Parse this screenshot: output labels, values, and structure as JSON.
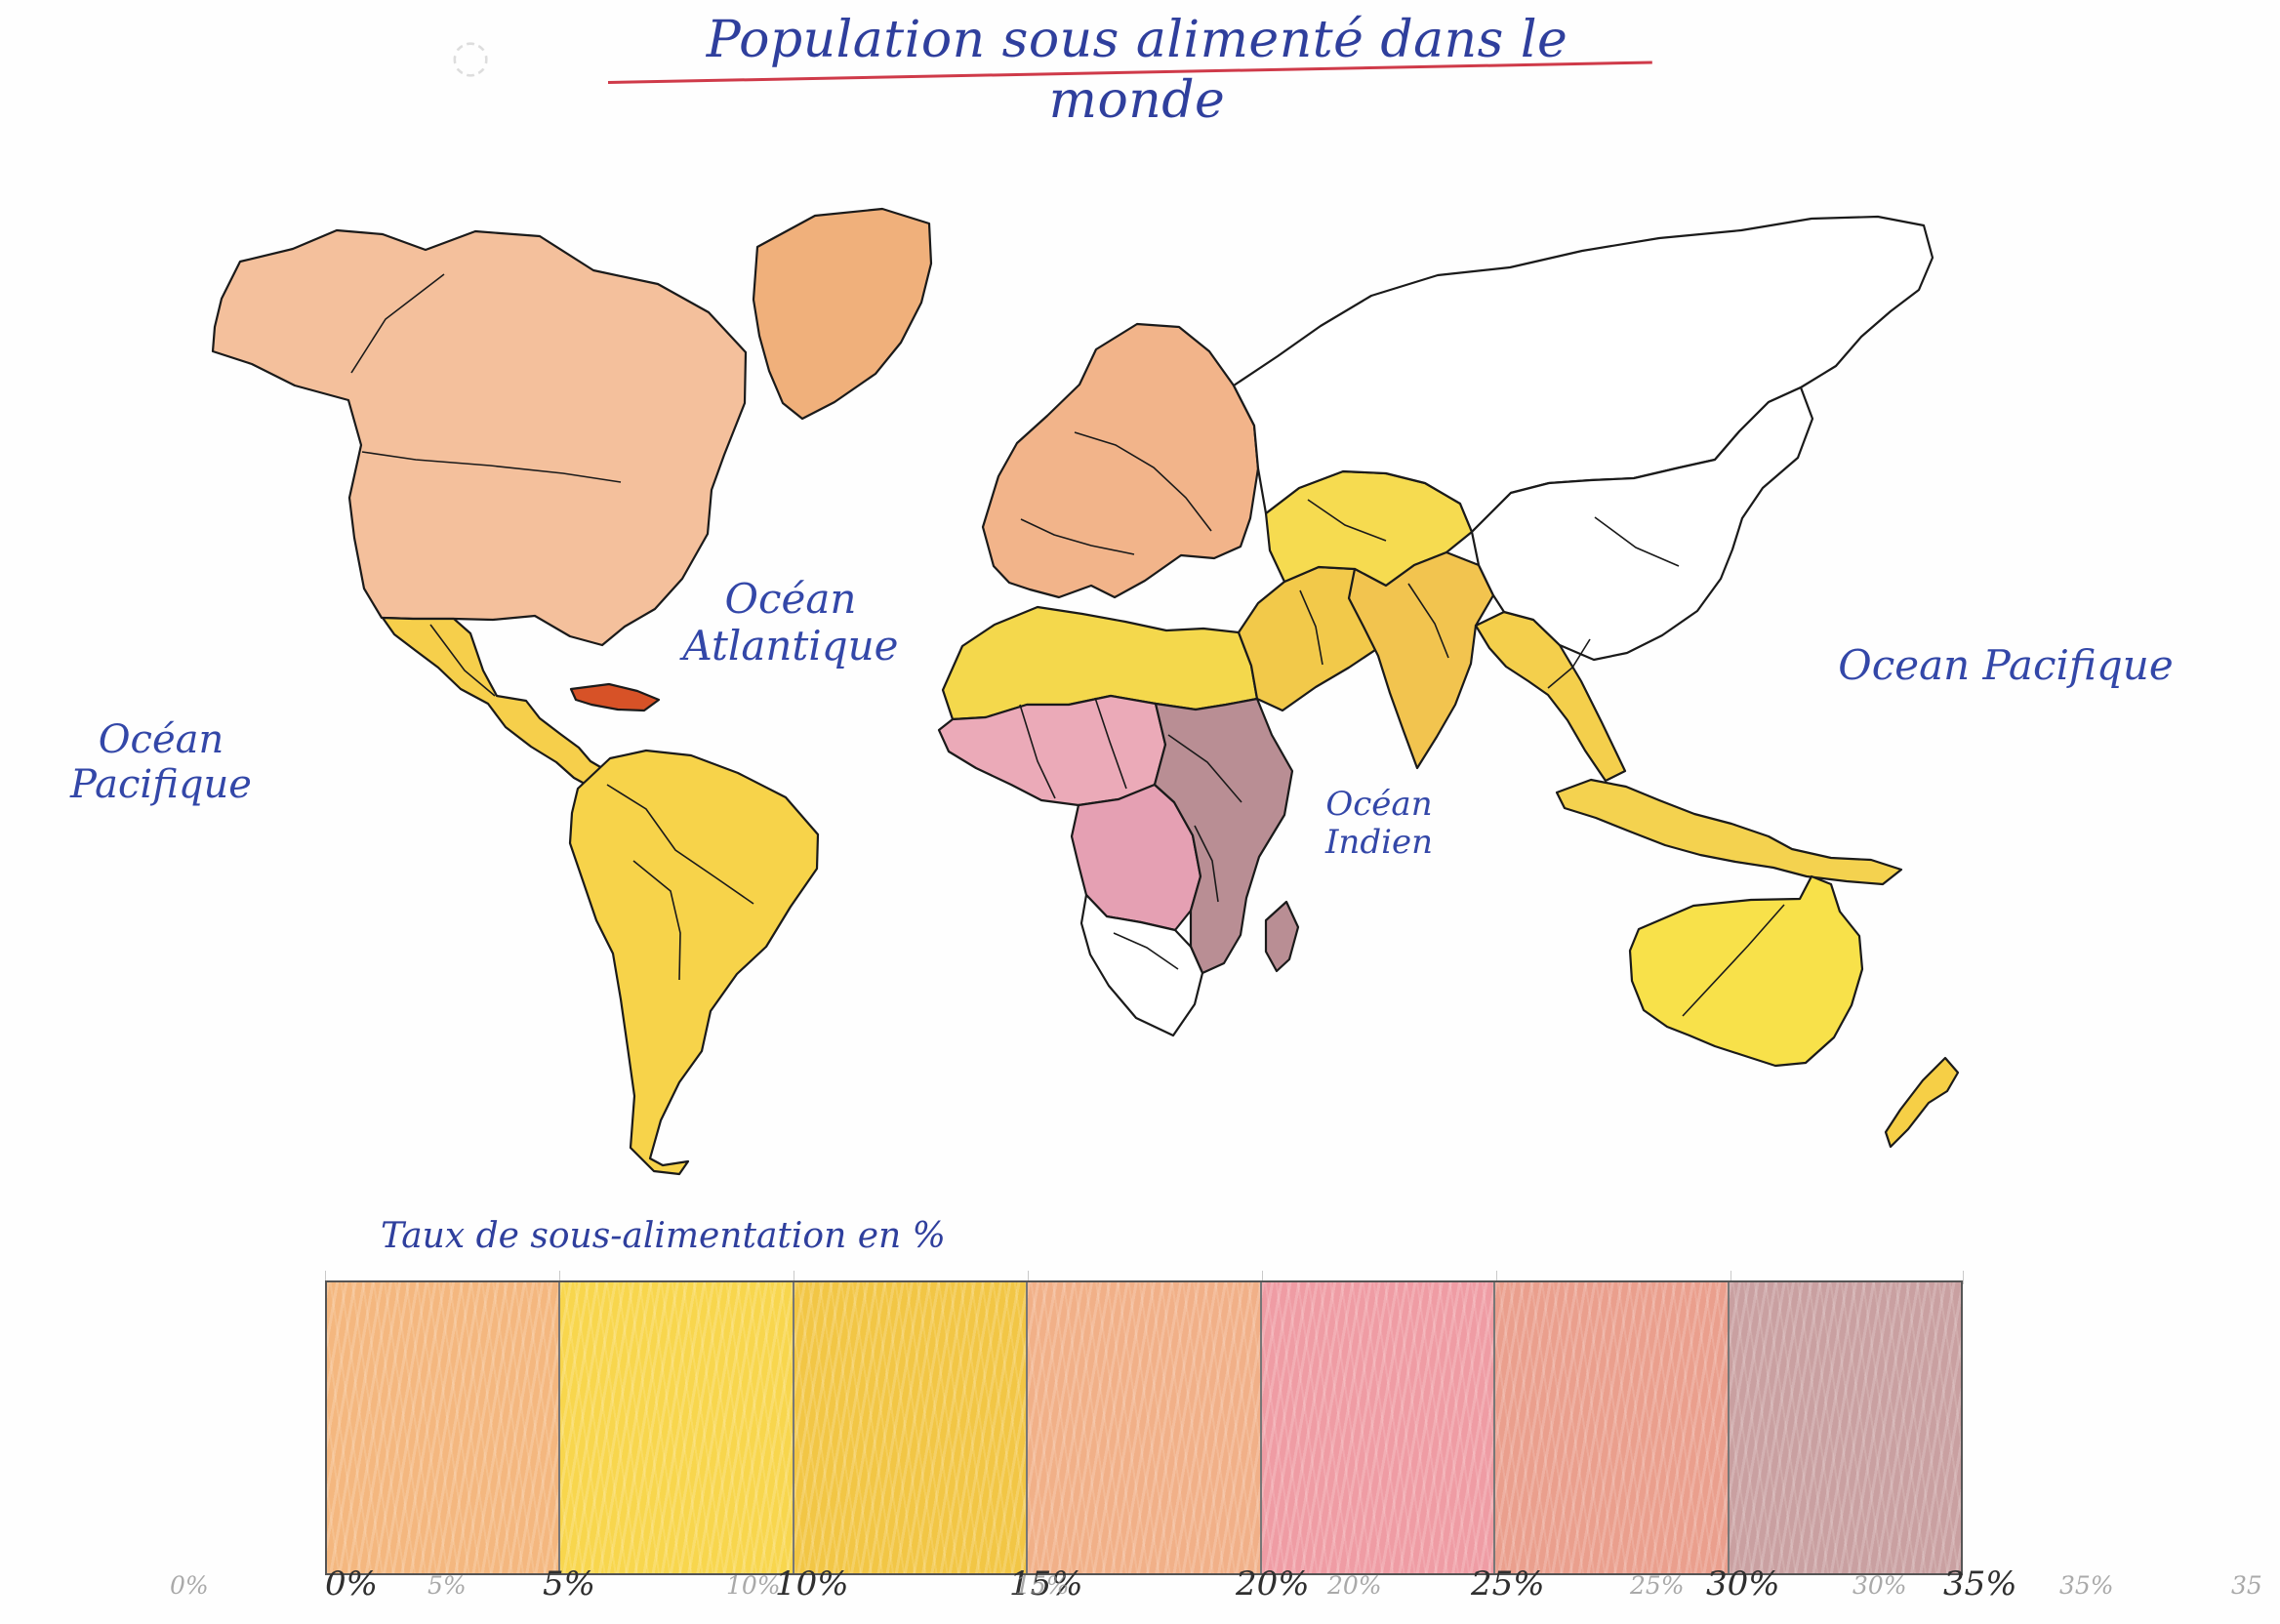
{
  "title": "Population sous alimenté dans le monde",
  "oceans": {
    "atlantic_line1": "Océan",
    "atlantic_line2": "Atlantique",
    "pacific_left_line1": "Océan",
    "pacific_left_line2": "Pacifique",
    "pacific_right": "Ocean Pacifique",
    "indian_line1": "Océan",
    "indian_line2": "Indien"
  },
  "legend": {
    "title": "Taux de sous-alimentation en %",
    "classes": [
      {
        "label": "0%-5%",
        "color": "#f4b77f"
      },
      {
        "label": "5%-10%",
        "color": "#f8d64d"
      },
      {
        "label": "10%-15%",
        "color": "#f2c645"
      },
      {
        "label": "15%-20%",
        "color": "#f1b088"
      },
      {
        "label": "20%-25%",
        "color": "#ef9ca4"
      },
      {
        "label": "25%-30%",
        "color": "#ea9f8d"
      },
      {
        "label": "30%-35%",
        "color": "#c9a0a1"
      }
    ],
    "ticks": [
      "0%",
      "5%",
      "10%",
      "15%",
      "20%",
      "25%",
      "30%",
      "35%"
    ],
    "scratch": [
      "0%",
      "5%",
      "10%",
      "15%",
      "20%",
      "25%",
      "30%",
      "35%",
      "35"
    ]
  },
  "map_colors": {
    "border": "#1a1a1a",
    "north_america": "#f4c09c",
    "greenland": "#f0b07b",
    "central_america": "#f6cf4b",
    "caribbean": "#d75227",
    "south_america": "#f7d34a",
    "europe": "#f2b48a",
    "north_africa": "#f4d84c",
    "west_africa": "#ebaab8",
    "central_africa": "#e5a0b3",
    "east_africa": "#b98e94",
    "southern_africa": "#ffffff",
    "madagascar": "#b98e94",
    "middle_east": "#f2c94a",
    "central_asia": "#f6db50",
    "south_asia": "#f2c44f",
    "southeast_asia": "#f4cf4c",
    "indonesia": "#f4d24f",
    "australia": "#f8e14a",
    "new_zealand": "#f6cf46",
    "russia": "#ffffff",
    "china": "#ffffff"
  }
}
